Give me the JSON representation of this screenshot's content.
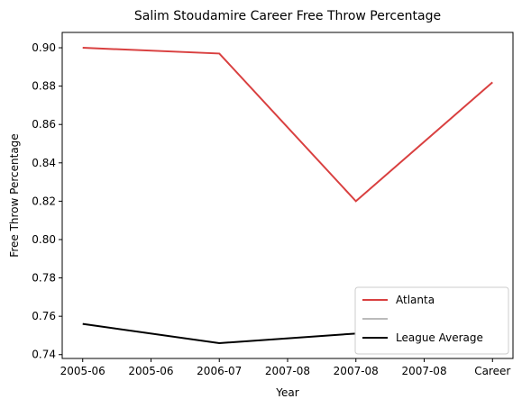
{
  "chart_data": {
    "type": "line",
    "title": "Salim Stoudamire Career Free Throw Percentage",
    "xlabel": "Year",
    "ylabel": "Free Throw Percentage",
    "x_tick_labels": [
      "2005-06",
      "2005-06",
      "2006-07",
      "2007-08",
      "2007-08",
      "2007-08",
      "Career"
    ],
    "x_positions": [
      0,
      1,
      2,
      3,
      4
    ],
    "x_labels_at_points": [
      "2005-06",
      "2006-07",
      "2007-08",
      "2007-08",
      "Career"
    ],
    "ylim": [
      0.738,
      0.908
    ],
    "y_ticks": [
      0.74,
      0.76,
      0.78,
      0.8,
      0.82,
      0.84,
      0.86,
      0.88,
      0.9
    ],
    "series": [
      {
        "name": "Atlanta",
        "color": "#d94040",
        "x": [
          0,
          1,
          2,
          3
        ],
        "values": [
          0.9,
          0.897,
          0.82,
          0.882
        ],
        "x_index_map": [
          0,
          2,
          4,
          6
        ]
      },
      {
        "name": "",
        "color": "#bbbbbb",
        "x": [],
        "values": []
      },
      {
        "name": "League Average",
        "color": "#000000",
        "x": [
          0,
          1,
          2
        ],
        "values": [
          0.756,
          0.746,
          0.751
        ],
        "x_index_map": [
          0,
          2,
          4
        ]
      }
    ],
    "legend": {
      "placement": "lower-right",
      "entries": [
        "Atlanta",
        "",
        "League Average"
      ]
    },
    "grid": false
  }
}
